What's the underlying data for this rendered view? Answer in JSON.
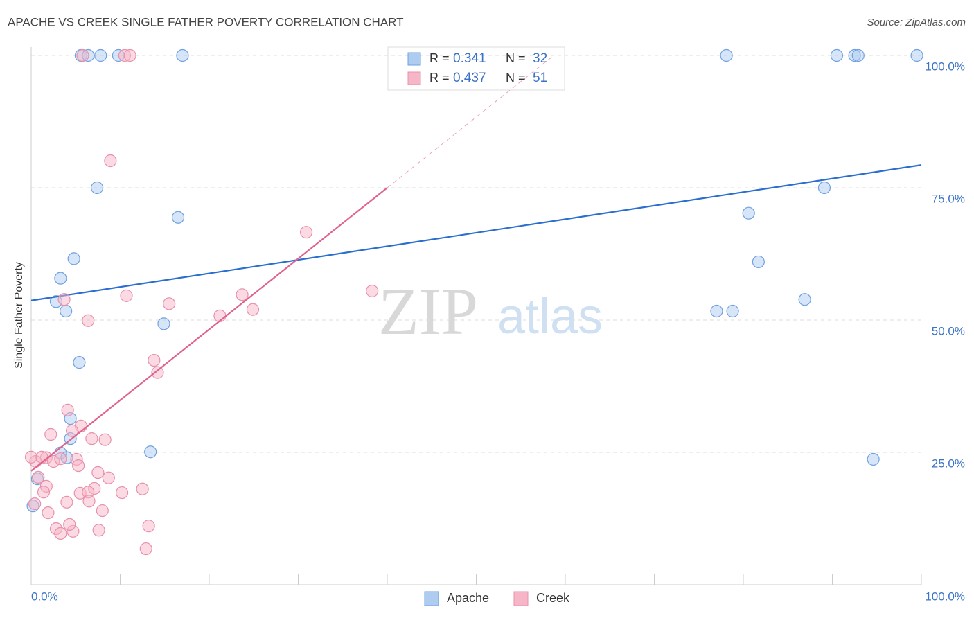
{
  "chart_data": {
    "type": "scatter",
    "title": "APACHE VS CREEK SINGLE FATHER POVERTY CORRELATION CHART",
    "source": "Source: ZipAtlas.com",
    "y_label": "Single Father Poverty",
    "watermark": [
      "ZIP",
      "atlas"
    ],
    "legend_labels": {
      "r": "R =",
      "n": "N ="
    },
    "xlim": [
      0,
      100
    ],
    "ylim": [
      0,
      100
    ],
    "xticks": [
      {
        "value": 0,
        "label": "0.0%"
      },
      {
        "value": 100,
        "label": "100.0%"
      }
    ],
    "x_minor_ticks": [
      10,
      20,
      30,
      40,
      50,
      60,
      70,
      80,
      90
    ],
    "yticks": [
      {
        "value": 25,
        "label": "25.0%"
      },
      {
        "value": 50,
        "label": "50.0%"
      },
      {
        "value": 75,
        "label": "75.0%"
      },
      {
        "value": 100,
        "label": "100.0%"
      }
    ],
    "grid": true,
    "series": [
      {
        "name": "Apache",
        "color": "#6fa0e0",
        "fill": "#aecbf0",
        "line_color": "#2a6fcf",
        "r": "0.341",
        "n": "32",
        "trendline": {
          "x": [
            0,
            100
          ],
          "y": [
            53.7,
            79.3
          ]
        },
        "x": [
          5.6,
          6.4,
          7.8,
          9.8,
          17.0,
          78.1,
          90.5,
          92.5,
          92.9,
          99.5,
          7.4,
          16.5,
          4.8,
          3.3,
          2.8,
          3.9,
          14.9,
          5.4,
          4.4,
          4.4,
          3.3,
          4.0,
          13.4,
          0.7,
          0.2,
          80.6,
          89.1,
          81.7,
          86.9,
          77.0,
          78.8,
          94.6
        ],
        "values": [
          100,
          100,
          100,
          100,
          100,
          100,
          100,
          100,
          100,
          100,
          75,
          69.4,
          61.6,
          57.9,
          53.5,
          51.7,
          49.3,
          42.0,
          31.4,
          27.6,
          24.9,
          24.0,
          25.1,
          20.0,
          14.9,
          70.2,
          75,
          61.0,
          53.9,
          51.7,
          51.7,
          23.7
        ]
      },
      {
        "name": "Creek",
        "color": "#e890aa",
        "fill": "#f7b6c8",
        "line_color": "#e0628f",
        "r": "0.437",
        "n": "51",
        "trendline": {
          "x": [
            0,
            40,
            58.7
          ],
          "y": [
            21.5,
            75,
            100
          ]
        },
        "x": [
          5.8,
          10.5,
          11.1,
          8.9,
          30.9,
          38.3,
          23.7,
          24.9,
          10.7,
          15.5,
          21.2,
          3.7,
          6.4,
          13.8,
          14.2,
          4.1,
          5.6,
          4.6,
          2.2,
          6.8,
          8.3,
          0.5,
          1.7,
          2.5,
          3.3,
          5.1,
          5.3,
          7.5,
          8.7,
          0.8,
          1.7,
          1.4,
          7.1,
          12.5,
          10.2,
          5.5,
          6.4,
          4.0,
          6.5,
          8.0,
          1.9,
          2.8,
          3.3,
          4.7,
          7.6,
          13.2,
          12.9,
          0.4,
          0.0,
          1.2,
          4.3
        ],
        "values": [
          100,
          100,
          100,
          80.1,
          66.6,
          55.5,
          54.8,
          52.0,
          54.6,
          53.1,
          50.8,
          53.9,
          49.9,
          42.4,
          40.1,
          33.0,
          30.0,
          29.1,
          28.4,
          27.6,
          27.4,
          23.3,
          24.0,
          23.3,
          23.8,
          23.7,
          22.5,
          21.2,
          20.2,
          20.3,
          18.6,
          17.5,
          18.2,
          18.1,
          17.4,
          17.3,
          17.5,
          15.6,
          15.8,
          14.0,
          13.6,
          10.6,
          9.7,
          10.1,
          10.3,
          11.1,
          6.8,
          15.3,
          24.1,
          24.1,
          11.4
        ]
      }
    ]
  }
}
